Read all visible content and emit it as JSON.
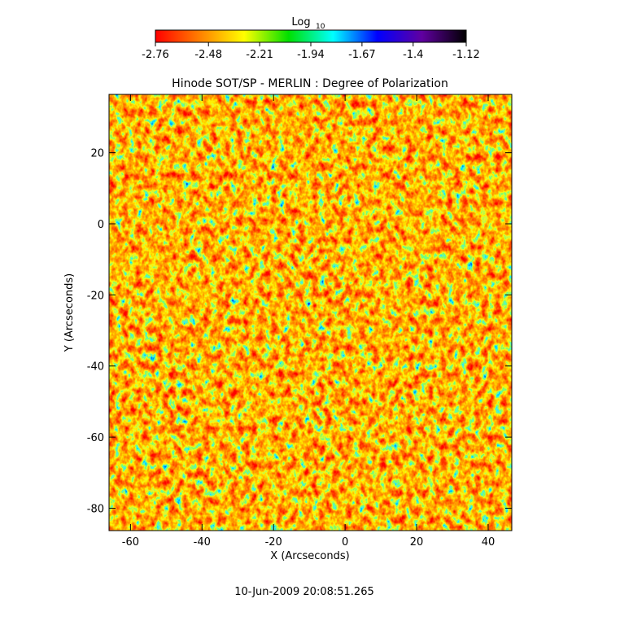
{
  "chart_data": {
    "type": "heatmap",
    "title": "Hinode SOT/SP - MERLIN : Degree of Polarization",
    "x_label": "X (Arcseconds)",
    "y_label": "Y (Arcseconds)",
    "xlim": [
      -66,
      46.6
    ],
    "ylim": [
      -86.3,
      36.4
    ],
    "xticks": [
      -60,
      -40,
      -20,
      0,
      20,
      40
    ],
    "yticks": [
      -80,
      -60,
      -40,
      -20,
      0,
      20
    ],
    "colorbar": {
      "label": "Log",
      "label_sub": "10",
      "lim": [
        -2.76,
        -1.12
      ],
      "ticks": [
        -2.76,
        -2.48,
        -2.21,
        -1.94,
        -1.67,
        -1.4,
        -1.12
      ],
      "colors": [
        "#ff0000",
        "#ff8000",
        "#ffff00",
        "#00e000",
        "#00ffff",
        "#0000ff",
        "#6000a0",
        "#000000"
      ]
    },
    "footer": "10-Jun-2009 20:08:51.265"
  }
}
